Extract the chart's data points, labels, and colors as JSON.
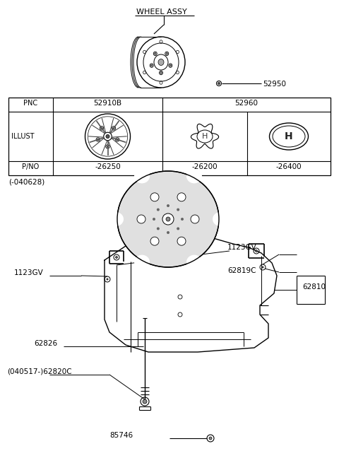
{
  "background_color": "#ffffff",
  "wheel_assy_label": "WHEEL ASSY",
  "part_52950": "52950",
  "date_range": "(-040628)",
  "parts": {
    "1123GV_left": "1123GV",
    "1123GV_right": "1123GV",
    "62819C": "62819C",
    "62810": "62810",
    "62826": "62826",
    "62820C": "(040517-)62820C",
    "85746": "85746"
  },
  "table_col_labels": [
    "PNC",
    "52910B",
    "52960"
  ],
  "table_pno": [
    "-26250",
    "-26200",
    "-26400"
  ],
  "line_color": "#000000",
  "text_color": "#000000"
}
